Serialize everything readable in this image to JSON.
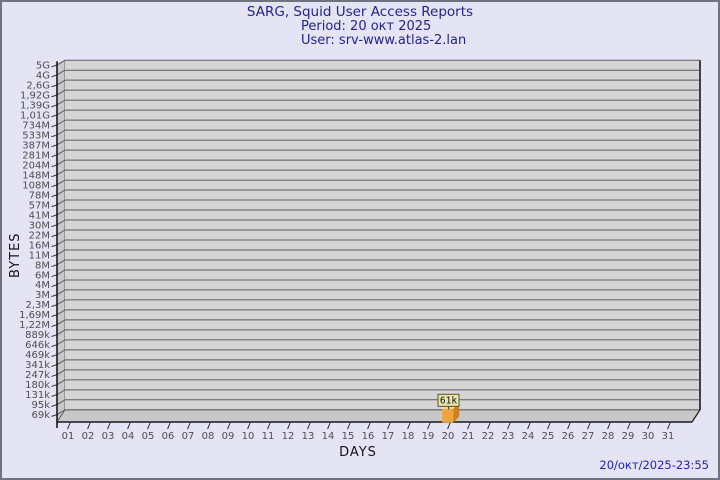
{
  "title": {
    "line1": "SARG, Squid User Access Reports",
    "line2": "Period: 20 окт 2025",
    "line3": "User: srv-www.atlas-2.lan"
  },
  "axes": {
    "y_label": "BYTES",
    "x_label": "DAYS"
  },
  "footer": {
    "timestamp": "20/окт/2025-23:55"
  },
  "colors": {
    "page_bg": "#e4e4f5",
    "frame_border": "#72727e",
    "title_text": "#23238e",
    "timestamp_text": "#2323be",
    "plot_bg": "#d5d5d5",
    "wall_fill": "#c8c8c8",
    "grid_line": "#5e5e5e",
    "axis_line": "#1a1a1a",
    "tick_text": "#4f4f4f",
    "bar_front": "#F0A440",
    "bar_top": "#F8CE8C",
    "bar_side": "#C8821E",
    "callout_bg": "#EAE6AE",
    "callout_border": "#55551e",
    "callout_text": "#101010"
  },
  "chart_data": {
    "type": "bar",
    "title": "SARG, Squid User Access Reports",
    "subtitle": "Period: 20 окт 2025 — User: srv-www.atlas-2.lan",
    "xlabel": "DAYS",
    "ylabel": "BYTES",
    "y_scale": "log",
    "grid": true,
    "y_tick_labels": [
      "5G",
      "4G",
      "2,6G",
      "1,92G",
      "1,39G",
      "1,01G",
      "734M",
      "533M",
      "387M",
      "281M",
      "204M",
      "148M",
      "108M",
      "78M",
      "57M",
      "41M",
      "30M",
      "22M",
      "16M",
      "11M",
      "8M",
      "6M",
      "4M",
      "3M",
      "2,3M",
      "1,69M",
      "1,22M",
      "889k",
      "646k",
      "469k",
      "341k",
      "247k",
      "180k",
      "131k",
      "95k",
      "69k"
    ],
    "categories": [
      "01",
      "02",
      "03",
      "04",
      "05",
      "06",
      "07",
      "08",
      "09",
      "10",
      "11",
      "12",
      "13",
      "14",
      "15",
      "16",
      "17",
      "18",
      "19",
      "20",
      "21",
      "22",
      "23",
      "24",
      "25",
      "26",
      "27",
      "28",
      "29",
      "30",
      "31"
    ],
    "values": [
      null,
      null,
      null,
      null,
      null,
      null,
      null,
      null,
      null,
      null,
      null,
      null,
      null,
      null,
      null,
      null,
      null,
      null,
      null,
      61000,
      null,
      null,
      null,
      null,
      null,
      null,
      null,
      null,
      null,
      null,
      null
    ],
    "annotations": [
      {
        "x": "20",
        "text": "61k"
      }
    ]
  }
}
